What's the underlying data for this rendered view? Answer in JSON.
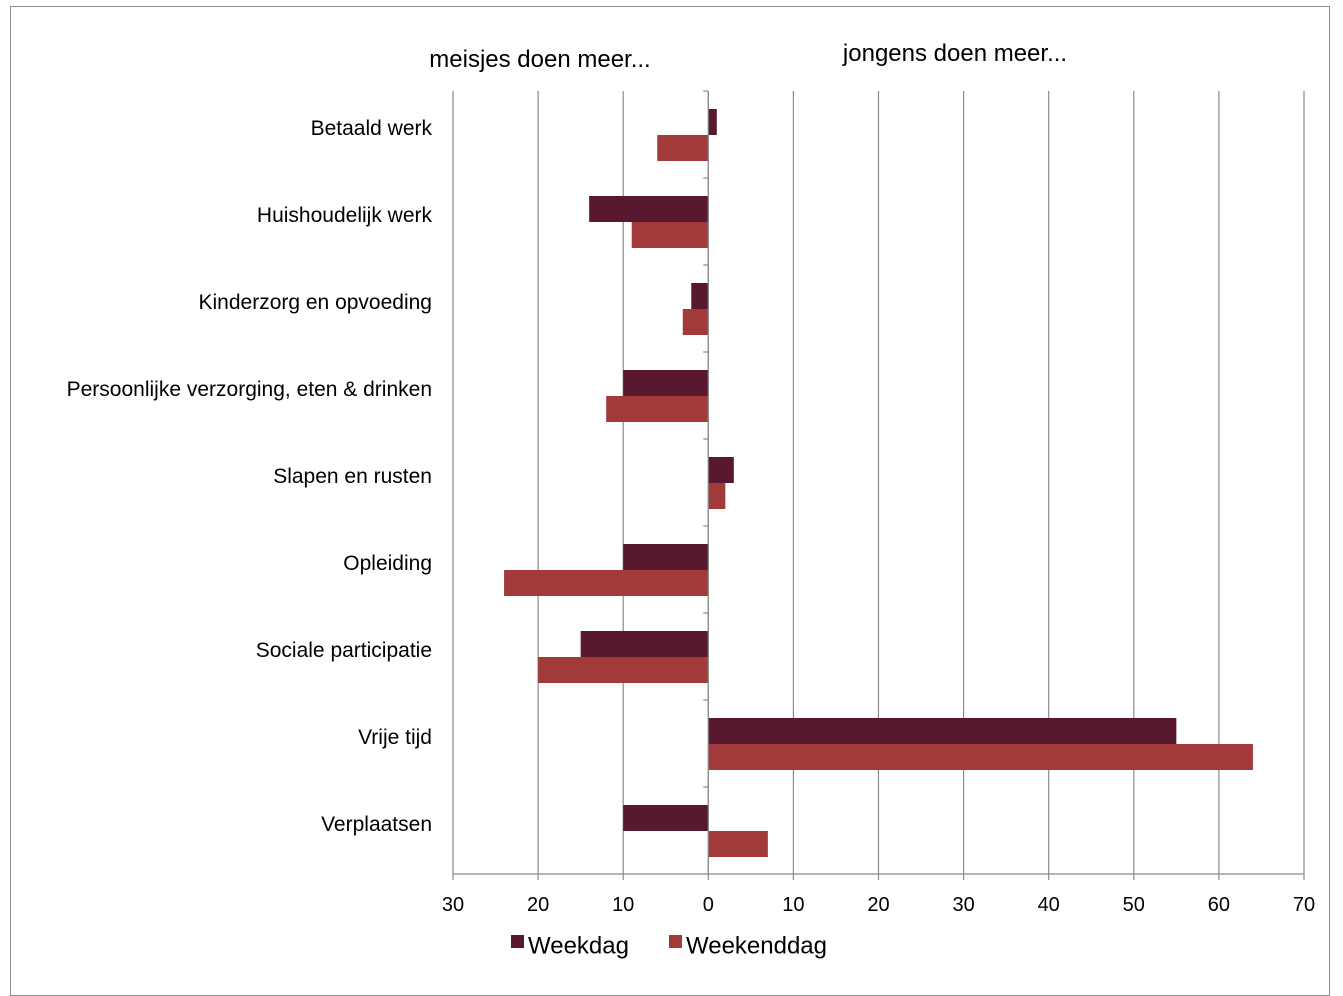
{
  "chart_data": {
    "type": "bar",
    "orientation": "horizontal",
    "annotations": {
      "left": "meisjes doen meer...",
      "right": "jongens doen meer..."
    },
    "categories": [
      "Betaald werk",
      "Huishoudelijk werk",
      "Kinderzorg en  opvoeding",
      "Persoonlijke verzorging, eten & drinken",
      "Slapen en rusten",
      "Opleiding",
      "Sociale participatie",
      "Vrije tijd",
      "Verplaatsen"
    ],
    "series": [
      {
        "name": "Weekdag",
        "color": "#581830",
        "values": [
          1,
          -14,
          -2,
          -10,
          3,
          -10,
          -15,
          55,
          -10
        ]
      },
      {
        "name": "Weekenddag",
        "color": "#A33A3A",
        "values": [
          -6,
          -9,
          -3,
          -12,
          2,
          -24,
          -20,
          64,
          7
        ]
      }
    ],
    "xlim": [
      -30,
      70
    ],
    "x_ticks": [
      -30,
      -20,
      -10,
      0,
      10,
      20,
      30,
      40,
      50,
      60,
      70
    ],
    "x_tick_labels": [
      "30",
      "20",
      "10",
      "0",
      "10",
      "20",
      "30",
      "40",
      "50",
      "60",
      "70"
    ],
    "grid": true,
    "legend": "bottom"
  }
}
